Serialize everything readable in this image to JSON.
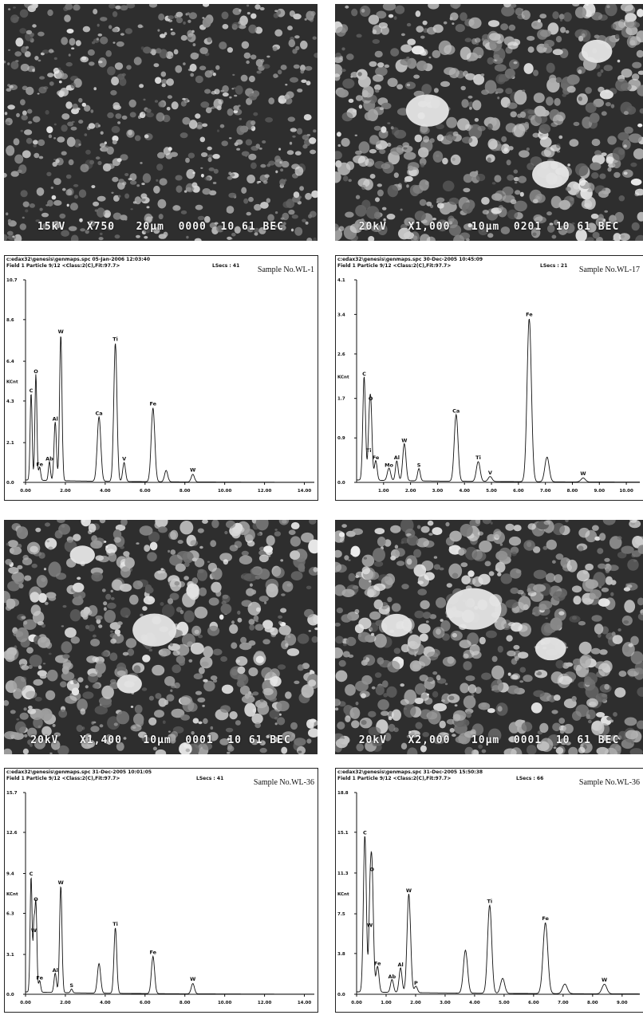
{
  "sem_images": [
    {
      "caption": "15kV   X750   20µm  0000  10 61 BEC",
      "seed": 11,
      "big": []
    },
    {
      "caption": "20kV   X1,000   10µm  0201  10 61 BEC",
      "seed": 23,
      "big": [
        [
          0.3,
          0.45,
          0.07
        ],
        [
          0.7,
          0.72,
          0.06
        ],
        [
          0.85,
          0.2,
          0.05
        ]
      ]
    },
    {
      "caption": "20kV   X1,400   10µm  0001  10 61 BEC",
      "seed": 37,
      "big": [
        [
          0.48,
          0.47,
          0.07
        ],
        [
          0.25,
          0.15,
          0.04
        ],
        [
          0.4,
          0.7,
          0.04
        ]
      ]
    },
    {
      "caption": "20kV   X2,000   10µm  0001  10 61 BEC",
      "seed": 53,
      "big": [
        [
          0.45,
          0.38,
          0.09
        ],
        [
          0.2,
          0.45,
          0.05
        ],
        [
          0.7,
          0.55,
          0.05
        ]
      ]
    }
  ],
  "chart_data": [
    {
      "type": "line",
      "header_line1": "c:edax32\\genesis\\genmaps.spc  05-Jan-2006 12:03:40",
      "header_line2": "Field 1 Particle 9/12 <Class:2(C),Fit:97.7>",
      "lsecs": "LSecs : 41",
      "sample": "Sample No.WL-1",
      "ylabel": "KCnt",
      "yticks": [
        "10.7",
        "8.6",
        "6.4",
        "4.3",
        "2.1",
        "0.0"
      ],
      "ytick_values": [
        10.7,
        8.6,
        6.4,
        4.3,
        2.1,
        0.0
      ],
      "xticks": [
        "0.00",
        "2.00",
        "4.00",
        "6.00",
        "8.00",
        "10.00",
        "12.00",
        "14.00"
      ],
      "xtick_values": [
        0,
        2,
        4,
        6,
        8,
        10,
        12,
        14
      ],
      "xlim": [
        0,
        14.5
      ],
      "ylim": [
        0,
        10.7
      ],
      "peaks": [
        {
          "label": "C",
          "x": 0.28,
          "y": 4.6,
          "w": 0.05
        },
        {
          "label": "O",
          "x": 0.52,
          "y": 5.6,
          "w": 0.05
        },
        {
          "label": "Fe",
          "x": 0.71,
          "y": 0.7,
          "w": 0.05
        },
        {
          "label": "Al",
          "x": 1.49,
          "y": 3.1,
          "w": 0.06
        },
        {
          "label": "Ab",
          "x": 1.2,
          "y": 1.0,
          "w": 0.05
        },
        {
          "label": "W",
          "x": 1.77,
          "y": 7.7,
          "w": 0.06
        },
        {
          "label": "Ca",
          "x": 3.69,
          "y": 3.4,
          "w": 0.09
        },
        {
          "label": "Ti",
          "x": 4.51,
          "y": 7.3,
          "w": 0.08
        },
        {
          "label": "V",
          "x": 4.95,
          "y": 1.0,
          "w": 0.07
        },
        {
          "label": "Fe",
          "x": 6.4,
          "y": 3.9,
          "w": 0.09
        },
        {
          "label": "",
          "x": 7.06,
          "y": 0.6,
          "w": 0.08
        },
        {
          "label": "W",
          "x": 8.4,
          "y": 0.4,
          "w": 0.08
        }
      ]
    },
    {
      "type": "line",
      "header_line1": "c:edax32\\genesis\\genmaps.spc  30-Dec-2005 10:45:09",
      "header_line2": "Field 1 Particle 9/12 <Class:2(C),Fit:97.7>",
      "lsecs": "LSecs : 21",
      "sample": "Sample No.WL-17",
      "ylabel": "KCnt",
      "yticks": [
        "4.1",
        "3.4",
        "2.6",
        "1.7",
        "0.9",
        "0.0"
      ],
      "ytick_values": [
        4.1,
        3.4,
        2.6,
        1.7,
        0.9,
        0.0
      ],
      "xticks": [
        "1.00",
        "2.00",
        "3.00",
        "4.00",
        "5.00",
        "6.00",
        "7.00",
        "8.00",
        "9.00",
        "10.00"
      ],
      "xtick_values": [
        1,
        2,
        3,
        4,
        5,
        6,
        7,
        8,
        9,
        10
      ],
      "xlim": [
        0,
        10.5
      ],
      "ylim": [
        0,
        4.1
      ],
      "peaks": [
        {
          "label": "C",
          "x": 0.28,
          "y": 2.1,
          "w": 0.05
        },
        {
          "label": "O",
          "x": 0.52,
          "y": 1.6,
          "w": 0.05
        },
        {
          "label": "Ti",
          "x": 0.45,
          "y": 0.55,
          "w": 0.04
        },
        {
          "label": "Fe",
          "x": 0.71,
          "y": 0.4,
          "w": 0.05
        },
        {
          "label": "Mo",
          "x": 1.2,
          "y": 0.25,
          "w": 0.06
        },
        {
          "label": "Al",
          "x": 1.49,
          "y": 0.4,
          "w": 0.05
        },
        {
          "label": "W",
          "x": 1.77,
          "y": 0.75,
          "w": 0.06
        },
        {
          "label": "S",
          "x": 2.31,
          "y": 0.25,
          "w": 0.05
        },
        {
          "label": "Ca",
          "x": 3.69,
          "y": 1.35,
          "w": 0.07
        },
        {
          "label": "Ti",
          "x": 4.51,
          "y": 0.4,
          "w": 0.07
        },
        {
          "label": "V",
          "x": 4.95,
          "y": 0.1,
          "w": 0.07
        },
        {
          "label": "Fe",
          "x": 6.4,
          "y": 3.3,
          "w": 0.08
        },
        {
          "label": "",
          "x": 7.06,
          "y": 0.5,
          "w": 0.08
        },
        {
          "label": "W",
          "x": 8.4,
          "y": 0.08,
          "w": 0.08
        }
      ]
    },
    {
      "type": "line",
      "header_line1": "c:edax32\\genesis\\genmaps.spc  31-Dec-2005 10:01:05",
      "header_line2": "Field 1 Particle 9/12 <Class:2(C),Fit:97.7>",
      "lsecs": "LSecs : 41",
      "sample": "Sample No.WL-36",
      "ylabel": "KCnt",
      "yticks": [
        "15.7",
        "12.6",
        "9.4",
        "6.3",
        "3.1",
        "0.0"
      ],
      "ytick_values": [
        15.7,
        12.6,
        9.4,
        6.3,
        3.1,
        0.0
      ],
      "xticks": [
        "0.00",
        "2.00",
        "4.00",
        "6.00",
        "8.00",
        "10.00",
        "12.00",
        "14.00"
      ],
      "xtick_values": [
        0,
        2,
        4,
        6,
        8,
        10,
        12,
        14
      ],
      "xlim": [
        0,
        14.5
      ],
      "ylim": [
        0,
        15.7
      ],
      "peaks": [
        {
          "label": "C",
          "x": 0.28,
          "y": 9.0,
          "w": 0.05
        },
        {
          "label": "O",
          "x": 0.52,
          "y": 7.0,
          "w": 0.05
        },
        {
          "label": "W",
          "x": 0.42,
          "y": 4.6,
          "w": 0.04
        },
        {
          "label": "Fe",
          "x": 0.71,
          "y": 0.9,
          "w": 0.05
        },
        {
          "label": "Al",
          "x": 1.49,
          "y": 1.5,
          "w": 0.06
        },
        {
          "label": "W",
          "x": 1.77,
          "y": 8.3,
          "w": 0.06
        },
        {
          "label": "S",
          "x": 2.31,
          "y": 0.3,
          "w": 0.05
        },
        {
          "label": "",
          "x": 3.69,
          "y": 2.3,
          "w": 0.08
        },
        {
          "label": "Ti",
          "x": 4.51,
          "y": 5.1,
          "w": 0.07
        },
        {
          "label": "Fe",
          "x": 6.4,
          "y": 2.9,
          "w": 0.08
        },
        {
          "label": "W",
          "x": 8.4,
          "y": 0.8,
          "w": 0.08
        }
      ]
    },
    {
      "type": "line",
      "header_line1": "c:edax32\\genesis\\genmaps.spc  31-Dec-2005 15:50:38",
      "header_line2": "Field 1 Particle 9/12 <Class:2(C),Fit:97.7>",
      "lsecs": "LSecs : 66",
      "sample": "Sample No.WL-36",
      "ylabel": "KCnt",
      "yticks": [
        "18.8",
        "15.1",
        "11.3",
        "7.5",
        "3.8",
        "0.0"
      ],
      "ytick_values": [
        18.8,
        15.1,
        11.3,
        7.5,
        3.8,
        0.0
      ],
      "xticks": [
        "0.00",
        "1.00",
        "2.00",
        "3.00",
        "4.00",
        "5.00",
        "6.00",
        "7.00",
        "8.00",
        "9.00"
      ],
      "xtick_values": [
        0,
        1,
        2,
        3,
        4,
        5,
        6,
        7,
        8,
        9
      ],
      "xlim": [
        0,
        9.6
      ],
      "ylim": [
        0,
        18.8
      ],
      "peaks": [
        {
          "label": "C",
          "x": 0.28,
          "y": 14.6,
          "w": 0.05
        },
        {
          "label": "O",
          "x": 0.52,
          "y": 11.2,
          "w": 0.05
        },
        {
          "label": "W",
          "x": 0.45,
          "y": 6.0,
          "w": 0.04
        },
        {
          "label": "Fe",
          "x": 0.71,
          "y": 2.4,
          "w": 0.05
        },
        {
          "label": "Ab",
          "x": 1.2,
          "y": 1.2,
          "w": 0.05
        },
        {
          "label": "Al",
          "x": 1.49,
          "y": 2.3,
          "w": 0.05
        },
        {
          "label": "W",
          "x": 1.77,
          "y": 9.2,
          "w": 0.06
        },
        {
          "label": "P",
          "x": 2.01,
          "y": 0.6,
          "w": 0.05
        },
        {
          "label": "",
          "x": 3.69,
          "y": 4.0,
          "w": 0.07
        },
        {
          "label": "Ti",
          "x": 4.51,
          "y": 8.2,
          "w": 0.07
        },
        {
          "label": "",
          "x": 4.95,
          "y": 1.4,
          "w": 0.07
        },
        {
          "label": "Fe",
          "x": 6.4,
          "y": 6.6,
          "w": 0.08
        },
        {
          "label": "",
          "x": 7.06,
          "y": 0.9,
          "w": 0.08
        },
        {
          "label": "W",
          "x": 8.4,
          "y": 0.9,
          "w": 0.08
        }
      ]
    }
  ]
}
